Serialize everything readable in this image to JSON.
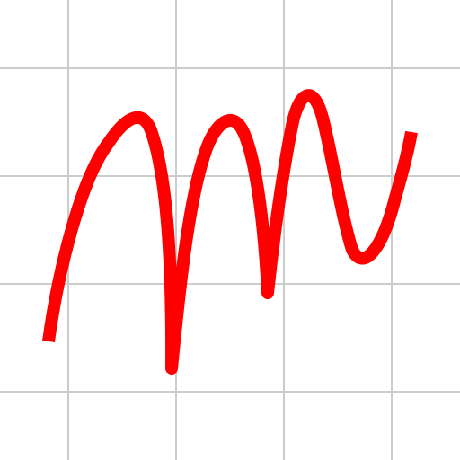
{
  "canvas": {
    "background_color": "#ffffff",
    "grid_color": "#cccccc",
    "grid_visible": true
  },
  "drawing": {
    "stroke_color": "#ff0000",
    "shape": "freehand-scribble"
  }
}
